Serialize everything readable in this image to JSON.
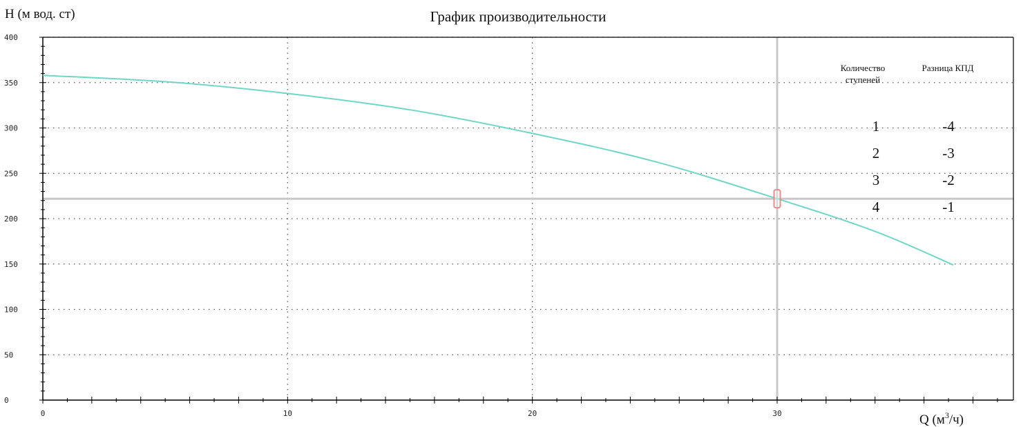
{
  "colors": {
    "background": "#ffffff",
    "axis": "#000000",
    "grid": "#555555",
    "curve": "#6fd6c6",
    "operating_lines": "#c8c8c8",
    "marker": "#e58c8c"
  },
  "chart_data": {
    "type": "line",
    "title": "График производительности",
    "ylabel": "H (м вод. ст)",
    "xlabel_main": "Q (м",
    "xlabel_sup": "3",
    "xlabel_tail": "/ч)",
    "xlim": [
      0,
      39.5
    ],
    "ylim": [
      0,
      400
    ],
    "x_ticks": [
      0,
      10,
      20,
      30
    ],
    "y_ticks": [
      0,
      50,
      100,
      150,
      200,
      250,
      300,
      350,
      400
    ],
    "grid": true,
    "series": [
      {
        "x": [
          0,
          5,
          10,
          15,
          20,
          25,
          30,
          34,
          37.2
        ],
        "y": [
          358,
          351,
          338,
          320,
          294,
          263,
          222,
          186,
          149
        ]
      }
    ],
    "operating_point": {
      "x": 30,
      "y": 222
    },
    "table": {
      "col1_line1": "Количество",
      "col1_line2": "ступеней",
      "col2_header": "Разница КПД",
      "rows": [
        {
          "stages": "1",
          "diff": "-4"
        },
        {
          "stages": "2",
          "diff": "-3"
        },
        {
          "stages": "3",
          "diff": "-2"
        },
        {
          "stages": "4",
          "diff": "-1"
        }
      ]
    }
  }
}
